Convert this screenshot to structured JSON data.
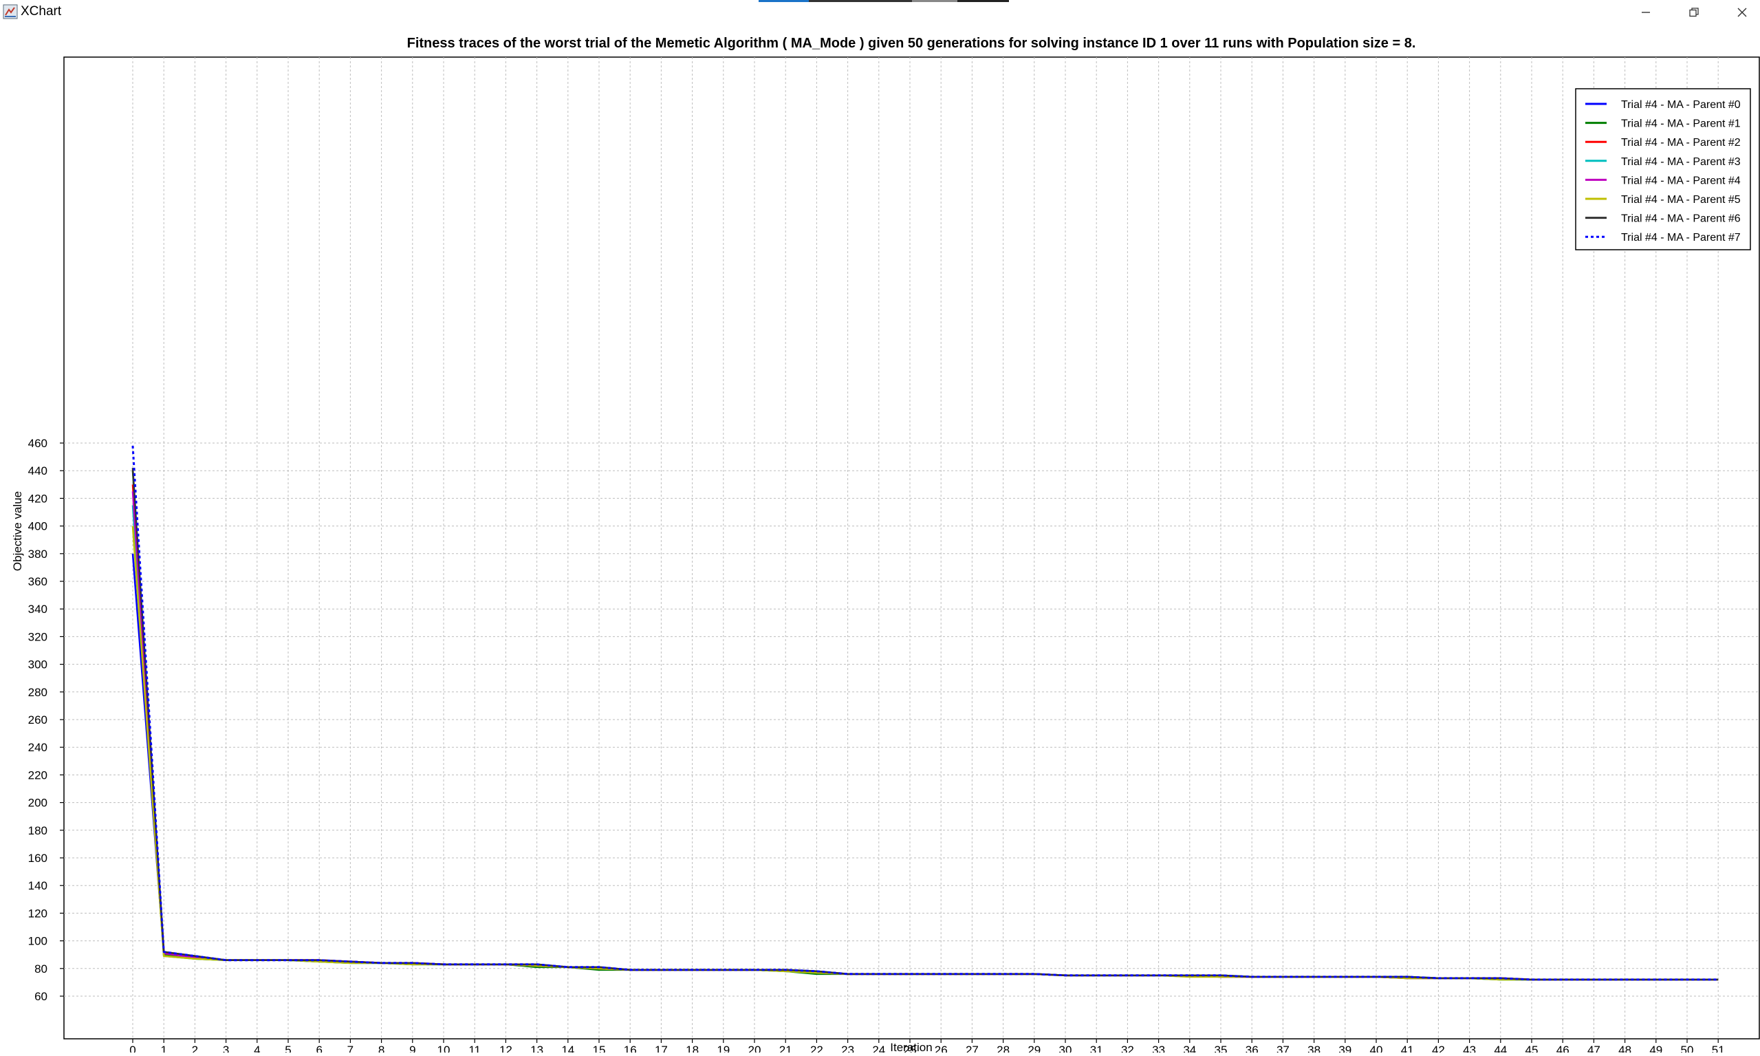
{
  "window": {
    "title": "XChart",
    "controls": {
      "minimize": "minimize-icon",
      "restore": "restore-icon",
      "close": "close-icon"
    }
  },
  "colors": {
    "accent_strip": [
      "#1a73c8",
      "#333333",
      "#888888",
      "#222222"
    ]
  },
  "chart_data": {
    "type": "line",
    "title": "Fitness traces of the worst trial of the Memetic Algorithm ( MA_Mode ) given 50 generations for solving instance ID 1 over 11 runs with Population size = 8.",
    "xlabel": "Iteration",
    "ylabel": "Objective value",
    "xlim": [
      0,
      51
    ],
    "ylim": [
      60,
      460
    ],
    "x_ticks": [
      0,
      1,
      2,
      3,
      4,
      5,
      6,
      7,
      8,
      9,
      10,
      11,
      12,
      13,
      14,
      15,
      16,
      17,
      18,
      19,
      20,
      21,
      22,
      23,
      24,
      25,
      26,
      27,
      28,
      29,
      30,
      31,
      32,
      33,
      34,
      35,
      36,
      37,
      38,
      39,
      40,
      41,
      42,
      43,
      44,
      45,
      46,
      47,
      48,
      49,
      50,
      51
    ],
    "y_ticks": [
      60,
      80,
      100,
      120,
      140,
      160,
      180,
      200,
      220,
      240,
      260,
      280,
      300,
      320,
      340,
      360,
      380,
      400,
      420,
      440,
      460
    ],
    "grid": true,
    "legend_position": "top-right",
    "series": [
      {
        "name": "Trial #4 - MA - Parent #0",
        "color": "#0000ff",
        "dashed": false,
        "values": [
          380,
          92,
          89,
          86,
          86,
          86,
          86,
          85,
          84,
          84,
          83,
          83,
          83,
          83,
          81,
          81,
          79,
          79,
          79,
          79,
          79,
          79,
          78,
          76,
          76,
          76,
          76,
          76,
          76,
          76,
          75,
          75,
          75,
          75,
          75,
          75,
          74,
          74,
          74,
          74,
          74,
          74,
          73,
          73,
          73,
          72,
          72,
          72,
          72,
          72,
          72,
          72
        ]
      },
      {
        "name": "Trial #4 - MA - Parent #1",
        "color": "#007f00",
        "dashed": false,
        "values": [
          440,
          90,
          87,
          86,
          86,
          86,
          85,
          84,
          84,
          83,
          83,
          83,
          83,
          81,
          81,
          79,
          79,
          79,
          79,
          79,
          79,
          78,
          76,
          76,
          76,
          76,
          76,
          76,
          76,
          76,
          75,
          75,
          75,
          75,
          75,
          75,
          74,
          74,
          74,
          74,
          74,
          74,
          73,
          73,
          72,
          72,
          72,
          72,
          72,
          72,
          72,
          72
        ]
      },
      {
        "name": "Trial #4 - MA - Parent #2",
        "color": "#ff0000",
        "dashed": false,
        "values": [
          430,
          91,
          88,
          86,
          86,
          86,
          86,
          85,
          84,
          84,
          83,
          83,
          83,
          82,
          81,
          80,
          79,
          79,
          79,
          79,
          79,
          79,
          77,
          76,
          76,
          76,
          76,
          76,
          76,
          76,
          75,
          75,
          75,
          75,
          75,
          74,
          74,
          74,
          74,
          74,
          74,
          73,
          73,
          73,
          73,
          72,
          72,
          72,
          72,
          72,
          72,
          72
        ]
      },
      {
        "name": "Trial #4 - MA - Parent #3",
        "color": "#00bfbf",
        "dashed": false,
        "values": [
          415,
          89,
          87,
          86,
          86,
          86,
          85,
          84,
          84,
          83,
          83,
          83,
          83,
          82,
          81,
          80,
          79,
          79,
          79,
          79,
          79,
          78,
          77,
          76,
          76,
          76,
          76,
          76,
          76,
          76,
          75,
          75,
          75,
          75,
          75,
          74,
          74,
          74,
          74,
          74,
          74,
          73,
          73,
          73,
          72,
          72,
          72,
          72,
          72,
          72,
          72,
          72
        ]
      },
      {
        "name": "Trial #4 - MA - Parent #4",
        "color": "#bf00bf",
        "dashed": false,
        "values": [
          425,
          91,
          88,
          86,
          86,
          86,
          86,
          85,
          84,
          84,
          83,
          83,
          83,
          82,
          81,
          80,
          79,
          79,
          79,
          79,
          79,
          79,
          77,
          76,
          76,
          76,
          76,
          76,
          76,
          76,
          75,
          75,
          75,
          75,
          75,
          74,
          74,
          74,
          74,
          74,
          74,
          73,
          73,
          73,
          73,
          72,
          72,
          72,
          72,
          72,
          72,
          72
        ]
      },
      {
        "name": "Trial #4 - MA - Parent #5",
        "color": "#bfbf00",
        "dashed": false,
        "values": [
          400,
          89,
          87,
          86,
          86,
          86,
          85,
          84,
          84,
          83,
          83,
          83,
          83,
          82,
          81,
          80,
          79,
          79,
          79,
          79,
          79,
          78,
          77,
          76,
          76,
          76,
          76,
          76,
          76,
          76,
          75,
          75,
          75,
          75,
          74,
          74,
          74,
          74,
          74,
          74,
          74,
          73,
          73,
          73,
          72,
          72,
          72,
          72,
          72,
          72,
          72,
          72
        ]
      },
      {
        "name": "Trial #4 - MA - Parent #6",
        "color": "#333333",
        "dashed": false,
        "values": [
          442,
          92,
          89,
          86,
          86,
          86,
          86,
          85,
          84,
          84,
          83,
          83,
          83,
          83,
          81,
          81,
          79,
          79,
          79,
          79,
          79,
          79,
          78,
          76,
          76,
          76,
          76,
          76,
          76,
          76,
          75,
          75,
          75,
          75,
          75,
          75,
          74,
          74,
          74,
          74,
          74,
          74,
          73,
          73,
          73,
          72,
          72,
          72,
          72,
          72,
          72,
          72
        ]
      },
      {
        "name": "Trial #4 - MA - Parent #7",
        "color": "#0000ff",
        "dashed": true,
        "values": [
          458,
          92,
          89,
          86,
          86,
          86,
          86,
          85,
          84,
          84,
          83,
          83,
          83,
          83,
          81,
          81,
          79,
          79,
          79,
          79,
          79,
          79,
          78,
          76,
          76,
          76,
          76,
          76,
          76,
          76,
          75,
          75,
          75,
          75,
          75,
          75,
          74,
          74,
          74,
          74,
          74,
          74,
          73,
          73,
          73,
          72,
          72,
          72,
          72,
          72,
          72,
          72
        ]
      }
    ]
  }
}
